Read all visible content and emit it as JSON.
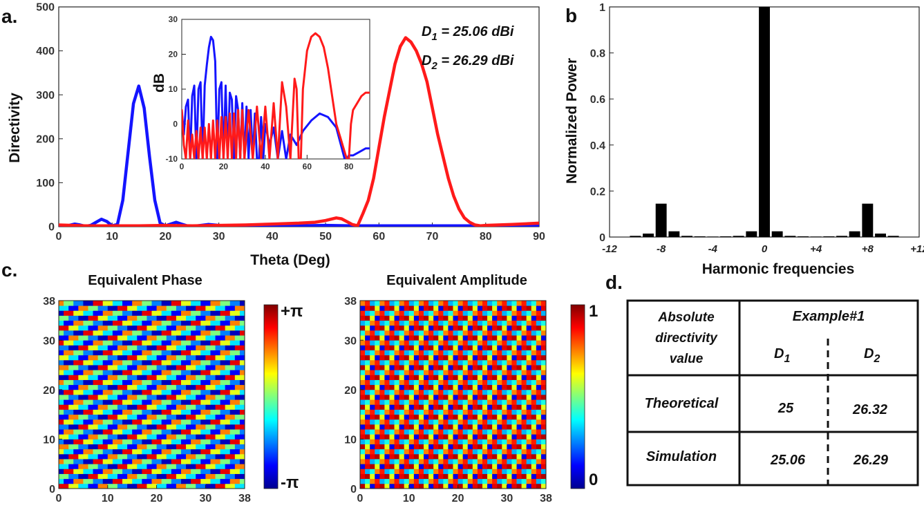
{
  "panels": {
    "a": "a.",
    "b": "b",
    "c": "c.",
    "d": "d."
  },
  "chart_data": [
    {
      "id": "a-main",
      "type": "line",
      "xlabel": "Theta (Deg)",
      "ylabel": "Directivity",
      "xlim": [
        0,
        90
      ],
      "ylim": [
        0,
        500
      ],
      "xticks": [
        "0",
        "10",
        "20",
        "30",
        "40",
        "50",
        "60",
        "70",
        "80",
        "90"
      ],
      "yticks": [
        "0",
        "100",
        "200",
        "300",
        "400",
        "500"
      ],
      "annotations": [
        "D1 = 25.06 dBi",
        "D2 = 26.29 dBi"
      ],
      "series": [
        {
          "color": "#1414ff",
          "x": [
            0,
            2,
            3,
            4,
            5,
            6,
            7,
            8,
            9,
            10,
            11,
            12,
            13,
            14,
            15,
            16,
            17,
            18,
            19,
            20,
            21,
            22,
            23,
            24,
            26,
            28,
            30,
            35,
            40,
            45,
            50,
            55,
            60,
            70,
            80,
            90
          ],
          "y": [
            2,
            3,
            6,
            4,
            1,
            3,
            10,
            17,
            12,
            2,
            5,
            60,
            170,
            280,
            320,
            270,
            160,
            60,
            8,
            2,
            6,
            10,
            6,
            2,
            2,
            5,
            3,
            2,
            2,
            2,
            3,
            2,
            2,
            2,
            2,
            2
          ]
        },
        {
          "color": "#ff1a1a",
          "x": [
            0,
            5,
            10,
            15,
            20,
            25,
            30,
            35,
            40,
            45,
            48,
            50,
            52,
            53,
            55,
            56,
            57,
            58,
            59,
            60,
            61,
            62,
            63,
            64,
            65,
            66,
            67,
            68,
            69,
            70,
            71,
            72,
            73,
            74,
            75,
            76,
            77,
            78,
            79,
            80,
            85,
            90
          ],
          "y": [
            4,
            2,
            2,
            2,
            3,
            2,
            3,
            4,
            6,
            8,
            10,
            14,
            20,
            18,
            5,
            2,
            30,
            60,
            110,
            180,
            250,
            310,
            370,
            410,
            430,
            420,
            400,
            370,
            330,
            270,
            210,
            160,
            110,
            70,
            40,
            20,
            10,
            4,
            2,
            3,
            5,
            8
          ]
        }
      ]
    },
    {
      "id": "a-inset",
      "type": "line",
      "ylabel": "dB",
      "xlim": [
        0,
        90
      ],
      "ylim": [
        -10,
        30
      ],
      "xticks": [
        "0",
        "20",
        "40",
        "60",
        "80"
      ],
      "yticks": [
        "-10",
        "0",
        "10",
        "20",
        "30"
      ],
      "series": [
        {
          "color": "#1414ff",
          "x": [
            0,
            1,
            2,
            3,
            4,
            5,
            6,
            7,
            8,
            9,
            10,
            11,
            12,
            13,
            14,
            15,
            16,
            17,
            18,
            19,
            20,
            21,
            22,
            23,
            24,
            25,
            26,
            27,
            28,
            29,
            30,
            31,
            32,
            33,
            34,
            35,
            36,
            37,
            38,
            39,
            40,
            42,
            44,
            46,
            48,
            50,
            52,
            55,
            58,
            62,
            66,
            70,
            74,
            78,
            79,
            80,
            82,
            85,
            88,
            90
          ],
          "y": [
            4,
            -3,
            5,
            7,
            -10,
            8,
            11,
            -10,
            10,
            12,
            -10,
            11,
            17,
            22,
            25,
            24,
            18,
            -10,
            10,
            12,
            -10,
            11,
            -10,
            9,
            7,
            -10,
            8,
            4,
            -10,
            6,
            -10,
            5,
            -10,
            4,
            -10,
            3,
            -10,
            -10,
            2,
            -10,
            0,
            -6,
            -1,
            -10,
            -2,
            -10,
            -3,
            -6,
            -2,
            1,
            3,
            2,
            -1,
            -10,
            -10,
            -9,
            -9,
            -8,
            -7,
            -7
          ]
        },
        {
          "color": "#ff1a1a",
          "x": [
            0,
            1,
            2,
            3,
            4,
            5,
            6,
            7,
            8,
            9,
            10,
            11,
            12,
            13,
            14,
            15,
            16,
            17,
            18,
            19,
            20,
            21,
            22,
            23,
            24,
            25,
            26,
            27,
            28,
            29,
            30,
            32,
            34,
            36,
            38,
            40,
            42,
            44,
            46,
            48,
            50,
            52,
            54,
            55,
            56,
            57,
            58,
            60,
            62,
            64,
            66,
            68,
            70,
            72,
            74,
            76,
            78,
            79,
            80,
            81,
            82,
            84,
            86,
            88,
            90
          ],
          "y": [
            4,
            -6,
            -10,
            1,
            -10,
            -3,
            -10,
            -2,
            -10,
            -1,
            -10,
            -1,
            -10,
            0,
            -10,
            1,
            -10,
            1,
            -10,
            2,
            -10,
            2,
            -10,
            3,
            -10,
            3,
            -10,
            4,
            -10,
            4,
            -10,
            4,
            -10,
            5,
            -10,
            5,
            -10,
            6,
            -10,
            12,
            5,
            -10,
            13,
            10,
            -10,
            -10,
            10,
            21,
            25,
            26,
            25,
            22,
            16,
            8,
            0,
            -4,
            -8,
            -10,
            -10,
            0,
            4,
            6,
            8,
            9,
            9
          ]
        }
      ]
    },
    {
      "id": "b",
      "type": "bar",
      "xlabel": "Harmonic frequencies",
      "ylabel": "Normalized Power",
      "xlim": [
        -12,
        12
      ],
      "ylim": [
        0,
        1
      ],
      "xticks": [
        "-12",
        "-8",
        "-4",
        "0",
        "+4",
        "+8",
        "+12"
      ],
      "yticks": [
        "0",
        "0.2",
        "0.4",
        "0.6",
        "0.8",
        "1"
      ],
      "categories": [
        -10,
        -9,
        -8,
        -7,
        -6,
        -5,
        -4,
        -3,
        -2,
        -1,
        0,
        1,
        2,
        3,
        4,
        5,
        6,
        7,
        8,
        9,
        10
      ],
      "values": [
        0.005,
        0.015,
        0.145,
        0.025,
        0.005,
        0.003,
        0.002,
        0.003,
        0.005,
        0.025,
        1.0,
        0.025,
        0.005,
        0.003,
        0.002,
        0.003,
        0.005,
        0.025,
        0.145,
        0.015,
        0.005
      ]
    },
    {
      "id": "c-phase",
      "type": "heatmap",
      "title": "Equivalent Phase",
      "xlim": [
        0,
        38
      ],
      "ylim": [
        0,
        38
      ],
      "xticks": [
        "0",
        "10",
        "20",
        "30",
        "38"
      ],
      "yticks": [
        "0",
        "10",
        "20",
        "30",
        "38"
      ],
      "colorbar": {
        "top": "+π",
        "bottom": "-π"
      }
    },
    {
      "id": "c-amplitude",
      "type": "heatmap",
      "title": "Equivalent Amplitude",
      "xlim": [
        0,
        38
      ],
      "ylim": [
        0,
        38
      ],
      "xticks": [
        "0",
        "10",
        "20",
        "30",
        "38"
      ],
      "yticks": [
        "0",
        "10",
        "20",
        "30",
        "38"
      ],
      "colorbar": {
        "top": "1",
        "bottom": "0"
      }
    },
    {
      "id": "d",
      "type": "table",
      "header_left": [
        "Absolute",
        "directivity",
        "value"
      ],
      "header_right": "Example#1",
      "subheaders": [
        "D1",
        "D2"
      ],
      "rows": [
        {
          "label": "Theoretical",
          "values": [
            "25",
            "26.32"
          ]
        },
        {
          "label": "Simulation",
          "values": [
            "25.06",
            "26.29"
          ]
        }
      ]
    }
  ]
}
